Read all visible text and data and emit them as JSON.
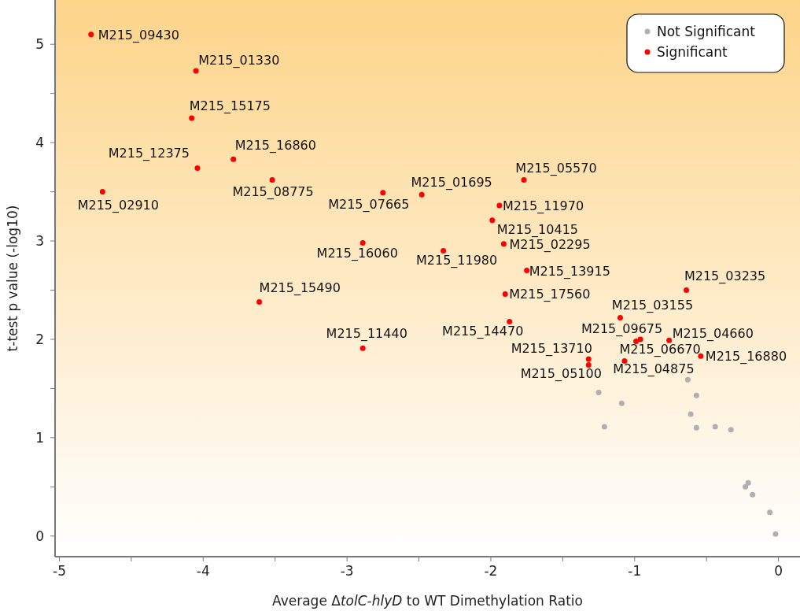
{
  "chart_data": {
    "type": "scatter",
    "xlabel": "Average Δ$_{}$tolC-hlyD to WT Dimethylation Ratio",
    "ylabel": "t-test p value (-log10)",
    "xlim": [
      -5.03,
      0.15
    ],
    "ylim": [
      -0.21,
      5.45
    ],
    "xticks": [
      -5,
      {
        "value": -4.5,
        "label": null
      },
      -4,
      {
        "value": -3.5,
        "label": null
      },
      -3,
      {
        "value": -2.5,
        "label": null
      },
      -2,
      {
        "value": -1.5,
        "label": null
      },
      -1,
      {
        "value": -0.5,
        "label": null
      },
      0
    ],
    "yticks": [
      0,
      {
        "value": 0.5,
        "label": null
      },
      1,
      {
        "value": 1.5,
        "label": null
      },
      2,
      {
        "value": 2.5,
        "label": null
      },
      3,
      {
        "value": 3.5,
        "label": null
      },
      4,
      {
        "value": 4.5,
        "label": null
      },
      5
    ],
    "legend": "top right",
    "marker": "circle",
    "grid": false,
    "series": [
      {
        "name": "Not Significant",
        "color": "#b0b0b0",
        "x": [
          -0.63,
          -1.25,
          -0.57,
          -1.09,
          -0.61,
          -1.21,
          -0.57,
          -0.44,
          -0.33,
          -0.21,
          -0.23,
          -0.18,
          -0.06,
          -0.02
        ],
        "values": [
          1.59,
          1.46,
          1.43,
          1.35,
          1.24,
          1.11,
          1.1,
          1.11,
          1.08,
          0.54,
          0.5,
          0.42,
          0.24,
          0.02
        ]
      },
      {
        "name": "Significant",
        "color": "#ff0000",
        "x": [
          -4.78,
          -4.05,
          -4.08,
          -4.04,
          -3.79,
          -3.52,
          -4.7,
          -2.75,
          -2.48,
          -1.77,
          -1.94,
          -1.99,
          -1.91,
          -2.89,
          -2.33,
          -1.75,
          -3.61,
          -1.9,
          -1.87,
          -2.89,
          -0.64,
          -1.1,
          -0.99,
          -0.96,
          -0.76,
          -0.54,
          -1.32,
          -1.32,
          -1.07
        ],
        "values": [
          5.1,
          4.73,
          4.25,
          3.74,
          3.83,
          3.62,
          3.5,
          3.49,
          3.47,
          3.62,
          3.36,
          3.21,
          2.97,
          2.98,
          2.9,
          2.7,
          2.38,
          2.46,
          2.18,
          1.91,
          2.5,
          2.22,
          1.98,
          2.0,
          1.99,
          1.83,
          1.8,
          1.74,
          1.78
        ]
      }
    ],
    "annotations": [
      {
        "text": "M215_09430",
        "x": -4.78,
        "y": 5.1
      },
      {
        "text": "M215_01330",
        "x": -4.05,
        "y": 4.73
      },
      {
        "text": "M215_15175",
        "x": -4.08,
        "y": 4.25
      },
      {
        "text": "M215_12375",
        "x": -4.04,
        "y": 3.74
      },
      {
        "text": "M215_16860",
        "x": -3.79,
        "y": 3.83
      },
      {
        "text": "M215_08775",
        "x": -3.52,
        "y": 3.62
      },
      {
        "text": "M215_02910",
        "x": -4.7,
        "y": 3.5
      },
      {
        "text": "M215_07665",
        "x": -2.75,
        "y": 3.49
      },
      {
        "text": "M215_01695",
        "x": -2.48,
        "y": 3.47
      },
      {
        "text": "M215_05570",
        "x": -1.77,
        "y": 3.62
      },
      {
        "text": "M215_11970",
        "x": -1.94,
        "y": 3.36
      },
      {
        "text": "M215_10415",
        "x": -1.99,
        "y": 3.21
      },
      {
        "text": "M215_02295",
        "x": -1.91,
        "y": 2.97
      },
      {
        "text": "M215_16060",
        "x": -2.89,
        "y": 2.98
      },
      {
        "text": "M215_11980",
        "x": -2.33,
        "y": 2.9
      },
      {
        "text": "M215_13915",
        "x": -1.75,
        "y": 2.7
      },
      {
        "text": "M215_15490",
        "x": -3.61,
        "y": 2.38
      },
      {
        "text": "M215_17560",
        "x": -1.9,
        "y": 2.46
      },
      {
        "text": "M215_14470",
        "x": -1.87,
        "y": 2.18
      },
      {
        "text": "M215_11440",
        "x": -2.89,
        "y": 1.91
      },
      {
        "text": "M215_03235",
        "x": -0.64,
        "y": 2.5
      },
      {
        "text": "M215_03155",
        "x": -1.1,
        "y": 2.22
      },
      {
        "text": "M215_09675",
        "x": -0.99,
        "y": 1.98
      },
      {
        "text": "M215_06670",
        "x": -0.96,
        "y": 2.0
      },
      {
        "text": "M215_04660",
        "x": -0.76,
        "y": 1.99
      },
      {
        "text": "M215_16880",
        "x": -0.54,
        "y": 1.83
      },
      {
        "text": "M215_13710",
        "x": -1.32,
        "y": 1.8
      },
      {
        "text": "M215_05100",
        "x": -1.32,
        "y": 1.74
      },
      {
        "text": "M215_04875",
        "x": -1.07,
        "y": 1.78
      }
    ]
  }
}
